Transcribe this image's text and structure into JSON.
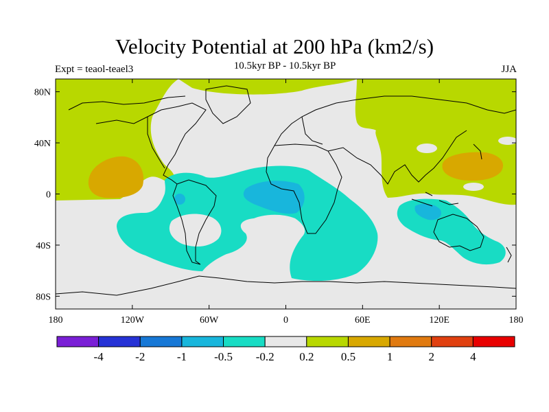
{
  "header": {
    "title": "Velocity Potential at 200 hPa (km2/s)",
    "subtitle": "10.5kyr BP - 10.5kyr BP",
    "left_label": "Expt = teaol-teael3",
    "right_label": "JJA"
  },
  "map": {
    "projection": "cylindrical-equidistant",
    "lon_range": [
      -180,
      180
    ],
    "lat_range": [
      -90,
      90
    ],
    "x_ticks": [
      "180",
      "120W",
      "60W",
      "0",
      "60E",
      "120E",
      "180"
    ],
    "y_ticks": [
      "80N",
      "40N",
      "0",
      "40S",
      "80S"
    ],
    "background_color": "#e8e8e8",
    "coastline_color": "#000000"
  },
  "colorbar": {
    "colors": [
      "#7a1fd6",
      "#2632d6",
      "#1778d6",
      "#18b6dc",
      "#18dcc4",
      "#e8e8e8",
      "#b8d800",
      "#d8a800",
      "#e07a10",
      "#e04010",
      "#e80000"
    ],
    "labels": [
      "-4",
      "-2",
      "-1",
      "-0.5",
      "-0.2",
      "0.2",
      "0.5",
      "1",
      "2",
      "4"
    ]
  },
  "regions": [
    {
      "name": "north-pacific-north-america-positive",
      "level": "0.2 to 0.5",
      "color": "#b8d800"
    },
    {
      "name": "eurasia-west-pacific-positive",
      "level": "0.2 to 0.5",
      "color": "#b8d800"
    },
    {
      "name": "east-pacific-max",
      "level": "0.5 to 1",
      "color": "#d8a800"
    },
    {
      "name": "west-pacific-max",
      "level": "0.5 to 1",
      "color": "#d8a800"
    },
    {
      "name": "atlantic-africa-negative",
      "level": "-0.5 to -0.2",
      "color": "#18dcc4"
    },
    {
      "name": "tropical-atlantic-min",
      "level": "-1 to -0.5",
      "color": "#18b6dc"
    },
    {
      "name": "maritime-continent-australia-negative",
      "level": "-0.5 to -0.2",
      "color": "#18dcc4"
    },
    {
      "name": "indonesia-min",
      "level": "-1 to -0.5",
      "color": "#18b6dc"
    }
  ]
}
